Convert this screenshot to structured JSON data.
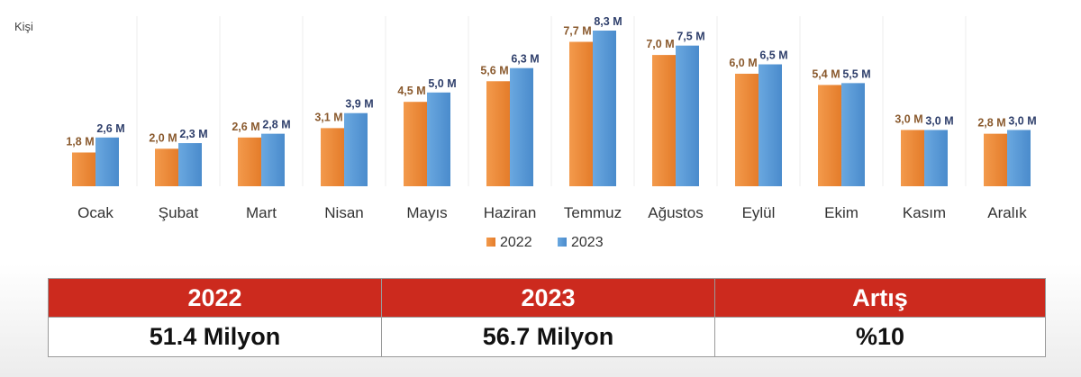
{
  "chart_data": {
    "type": "bar",
    "title": "",
    "ylabel": "Kişi",
    "xlabel": "",
    "ylim": [
      0,
      8.3
    ],
    "categories": [
      "Ocak",
      "Şubat",
      "Mart",
      "Nisan",
      "Mayıs",
      "Haziran",
      "Temmuz",
      "Ağustos",
      "Eylül",
      "Ekim",
      "Kasım",
      "Aralık"
    ],
    "series": [
      {
        "name": "2022",
        "color": "#ef8a3a",
        "label_color": "#8a5a2e",
        "values": [
          1.8,
          2.0,
          2.6,
          3.1,
          4.5,
          5.6,
          7.7,
          7.0,
          6.0,
          5.4,
          3.0,
          2.8
        ],
        "labels": [
          "1,8 M",
          "2,0 M",
          "2,6 M",
          "3,1 M",
          "4,5 M",
          "5,6 M",
          "7,7 M",
          "7,0 M",
          "6,0 M",
          "5,4 M",
          "3,0 M",
          "2,8 M"
        ]
      },
      {
        "name": "2023",
        "color": "#5b9bd5",
        "label_color": "#2f3f6b",
        "values": [
          2.6,
          2.3,
          2.8,
          3.9,
          5.0,
          6.3,
          8.3,
          7.5,
          6.5,
          5.5,
          3.0,
          3.0
        ],
        "labels": [
          "2,6 M",
          "2,3 M",
          "2,8 M",
          "3,9 M",
          "5,0 M",
          "6,3 M",
          "8,3 M",
          "7,5 M",
          "6,5 M",
          "5,5 M",
          "3,0 M",
          "3,0 M"
        ]
      }
    ],
    "legend_position": "bottom",
    "grid": false
  },
  "summary_table": {
    "headers": [
      "2022",
      "2023",
      "Artış"
    ],
    "values": [
      "51.4 Milyon",
      "56.7 Milyon",
      "%10"
    ]
  }
}
